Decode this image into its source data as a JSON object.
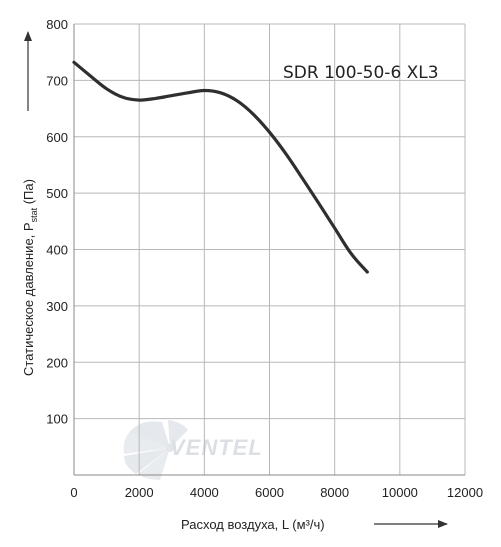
{
  "chart_data": {
    "type": "line",
    "title": "SDR 100-50-6 XL3",
    "xlabel": "Расход воздуха, L (м³/ч)",
    "ylabel_main": "Статическое давление, P",
    "ylabel_sub": "stat",
    "ylabel_unit": " (Па)",
    "xlim": [
      0,
      12000
    ],
    "ylim": [
      0,
      800
    ],
    "x_ticks": [
      0,
      2000,
      4000,
      6000,
      8000,
      10000,
      12000
    ],
    "y_ticks": [
      100,
      200,
      300,
      400,
      500,
      600,
      700,
      800
    ],
    "grid": true,
    "series": [
      {
        "name": "SDR 100-50-6 XL3",
        "x": [
          0,
          500,
          1000,
          1500,
          2000,
          2500,
          3000,
          3500,
          4000,
          4500,
          5000,
          5500,
          6000,
          6500,
          7000,
          7500,
          8000,
          8500,
          9000
        ],
        "y": [
          732,
          708,
          685,
          670,
          665,
          668,
          673,
          678,
          682,
          678,
          664,
          640,
          608,
          570,
          527,
          483,
          438,
          393,
          360
        ]
      }
    ]
  },
  "watermark": {
    "text": "VENTEL"
  },
  "colors": {
    "curve": "#2f2f2f",
    "grid": "#b8b8b8",
    "watermark": "#d9dde3"
  }
}
